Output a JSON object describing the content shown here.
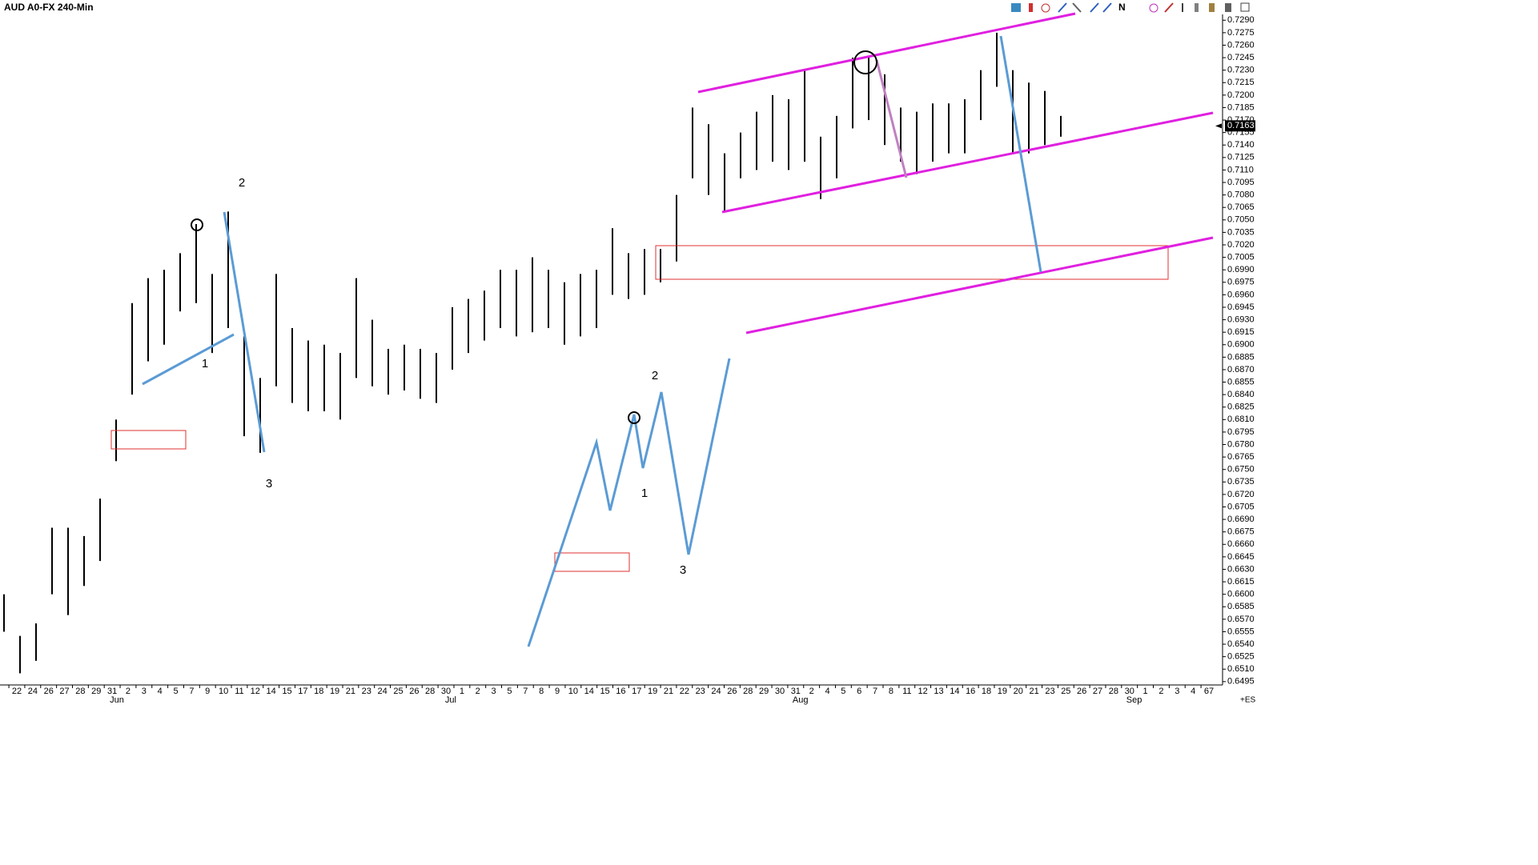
{
  "chart_data": {
    "type": "ohlc",
    "title": "AUD A0-FX 240-Min",
    "color": "#000000",
    "high": [
      0.66,
      0.655,
      0.6565,
      0.668,
      0.668,
      0.667,
      0.6715,
      0.681,
      0.695,
      0.698,
      0.699,
      0.701,
      0.7045,
      0.6985,
      0.706,
      0.691,
      0.686,
      0.6985,
      0.692,
      0.6905,
      0.69,
      0.689,
      0.698,
      0.693,
      0.6895,
      0.69,
      0.6895,
      0.689,
      0.6945,
      0.6955,
      0.6965,
      0.699,
      0.699,
      0.7005,
      0.699,
      0.6975,
      0.6985,
      0.699,
      0.704,
      0.701,
      0.7015,
      0.7015,
      0.708,
      0.7185,
      0.7165,
      0.713,
      0.7155,
      0.718,
      0.72,
      0.7195,
      0.723,
      0.715,
      0.7175,
      0.7245,
      0.7245,
      0.7225,
      0.7185,
      0.718,
      0.719,
      0.719,
      0.7195,
      0.723,
      0.7275,
      0.723,
      0.7215,
      0.7205,
      0.7175
    ],
    "low": [
      0.6555,
      0.6505,
      0.652,
      0.66,
      0.6575,
      0.661,
      0.664,
      0.676,
      0.684,
      0.688,
      0.69,
      0.694,
      0.695,
      0.689,
      0.692,
      0.679,
      0.677,
      0.685,
      0.683,
      0.682,
      0.682,
      0.681,
      0.686,
      0.685,
      0.684,
      0.6845,
      0.6835,
      0.683,
      0.687,
      0.689,
      0.6905,
      0.692,
      0.691,
      0.6915,
      0.692,
      0.69,
      0.691,
      0.692,
      0.696,
      0.6955,
      0.696,
      0.6975,
      0.7,
      0.71,
      0.708,
      0.706,
      0.71,
      0.711,
      0.712,
      0.711,
      0.712,
      0.7075,
      0.71,
      0.716,
      0.717,
      0.714,
      0.712,
      0.7105,
      0.712,
      0.713,
      0.713,
      0.717,
      0.721,
      0.713,
      0.713,
      0.714,
      0.715
    ],
    "ylim": [
      0.6491,
      0.7297
    ],
    "yticks": [
      0.6495,
      {
        "value": 0.651,
        "label": "0.6510"
      },
      0.6525,
      {
        "value": 0.654,
        "label": "0.6540"
      },
      0.6555,
      {
        "value": 0.657,
        "label": "0.6570"
      },
      0.6585,
      {
        "value": 0.66,
        "label": "0.6600"
      },
      0.6615,
      {
        "value": 0.663,
        "label": "0.6630"
      },
      0.6645,
      {
        "value": 0.666,
        "label": "0.6660"
      },
      0.6675,
      {
        "value": 0.669,
        "label": "0.6690"
      },
      0.6705,
      {
        "value": 0.672,
        "label": "0.6720"
      },
      0.6735,
      {
        "value": 0.675,
        "label": "0.6750"
      },
      0.6765,
      {
        "value": 0.678,
        "label": "0.6780"
      },
      0.6795,
      {
        "value": 0.681,
        "label": "0.6810"
      },
      0.6825,
      {
        "value": 0.684,
        "label": "0.6840"
      },
      0.6855,
      {
        "value": 0.687,
        "label": "0.6870"
      },
      0.6885,
      {
        "value": 0.69,
        "label": "0.6900"
      },
      0.6915,
      {
        "value": 0.693,
        "label": "0.6930"
      },
      0.6945,
      {
        "value": 0.696,
        "label": "0.6960"
      },
      0.6975,
      {
        "value": 0.699,
        "label": "0.6990"
      },
      0.7005,
      {
        "value": 0.702,
        "label": "0.7020"
      },
      0.7035,
      {
        "value": 0.705,
        "label": "0.7050"
      },
      0.7065,
      {
        "value": 0.708,
        "label": "0.7080"
      },
      0.7095,
      {
        "value": 0.711,
        "label": "0.7110"
      },
      0.7125,
      {
        "value": 0.714,
        "label": "0.7140"
      },
      0.7155,
      {
        "value": 0.717,
        "label": "0.7170"
      },
      0.7185,
      {
        "value": 0.72,
        "label": "0.7200"
      },
      0.7215,
      {
        "value": 0.723,
        "label": "0.7230"
      },
      0.7245,
      {
        "value": 0.726,
        "label": "0.7260"
      },
      0.7275,
      {
        "value": 0.729,
        "label": "0.7290"
      }
    ],
    "last_price": 0.7163,
    "x_labels": [
      "22",
      "24",
      "26",
      "27",
      "28",
      "29",
      "31",
      "2",
      "3",
      "4",
      "5",
      "7",
      "9",
      "10",
      "11",
      "12",
      "14",
      "15",
      "17",
      "18",
      "19",
      "21",
      "23",
      "24",
      "25",
      "26",
      "28",
      "30",
      "1",
      "2",
      "3",
      "5",
      "7",
      "8",
      "9",
      "10",
      "14",
      "15",
      "16",
      "17",
      "19",
      "21",
      "22",
      "23",
      "24",
      "26",
      "28",
      "29",
      "30",
      "31",
      "2",
      "4",
      "5",
      "6",
      "7",
      "8",
      "11",
      "12",
      "13",
      "14",
      "16",
      "18",
      "19",
      "20",
      "21",
      "23",
      "25",
      "26",
      "27",
      "28",
      "30",
      "1",
      "2",
      "3",
      "4",
      "67"
    ],
    "x_month_labels": [
      null,
      null,
      null,
      null,
      null,
      null,
      null,
      "Jun",
      null,
      null,
      null,
      null,
      null,
      null,
      null,
      null,
      null,
      null,
      null,
      null,
      null,
      null,
      null,
      null,
      null,
      null,
      null,
      null,
      "Jul",
      null,
      null,
      null,
      null,
      null,
      null,
      null,
      null,
      null,
      null,
      null,
      null,
      null,
      null,
      null,
      null,
      null,
      null,
      null,
      null,
      null,
      "Aug",
      null,
      null,
      null,
      null,
      null,
      null,
      null,
      null,
      null,
      null,
      null,
      null,
      null,
      null,
      null,
      null,
      null,
      null,
      null,
      null,
      "Sep",
      null,
      null,
      null,
      null
    ],
    "wave_labels": [
      "2",
      "1",
      "3",
      "2",
      "1",
      "3"
    ],
    "toolbar_letter": "N",
    "corner_label": "+ES"
  }
}
